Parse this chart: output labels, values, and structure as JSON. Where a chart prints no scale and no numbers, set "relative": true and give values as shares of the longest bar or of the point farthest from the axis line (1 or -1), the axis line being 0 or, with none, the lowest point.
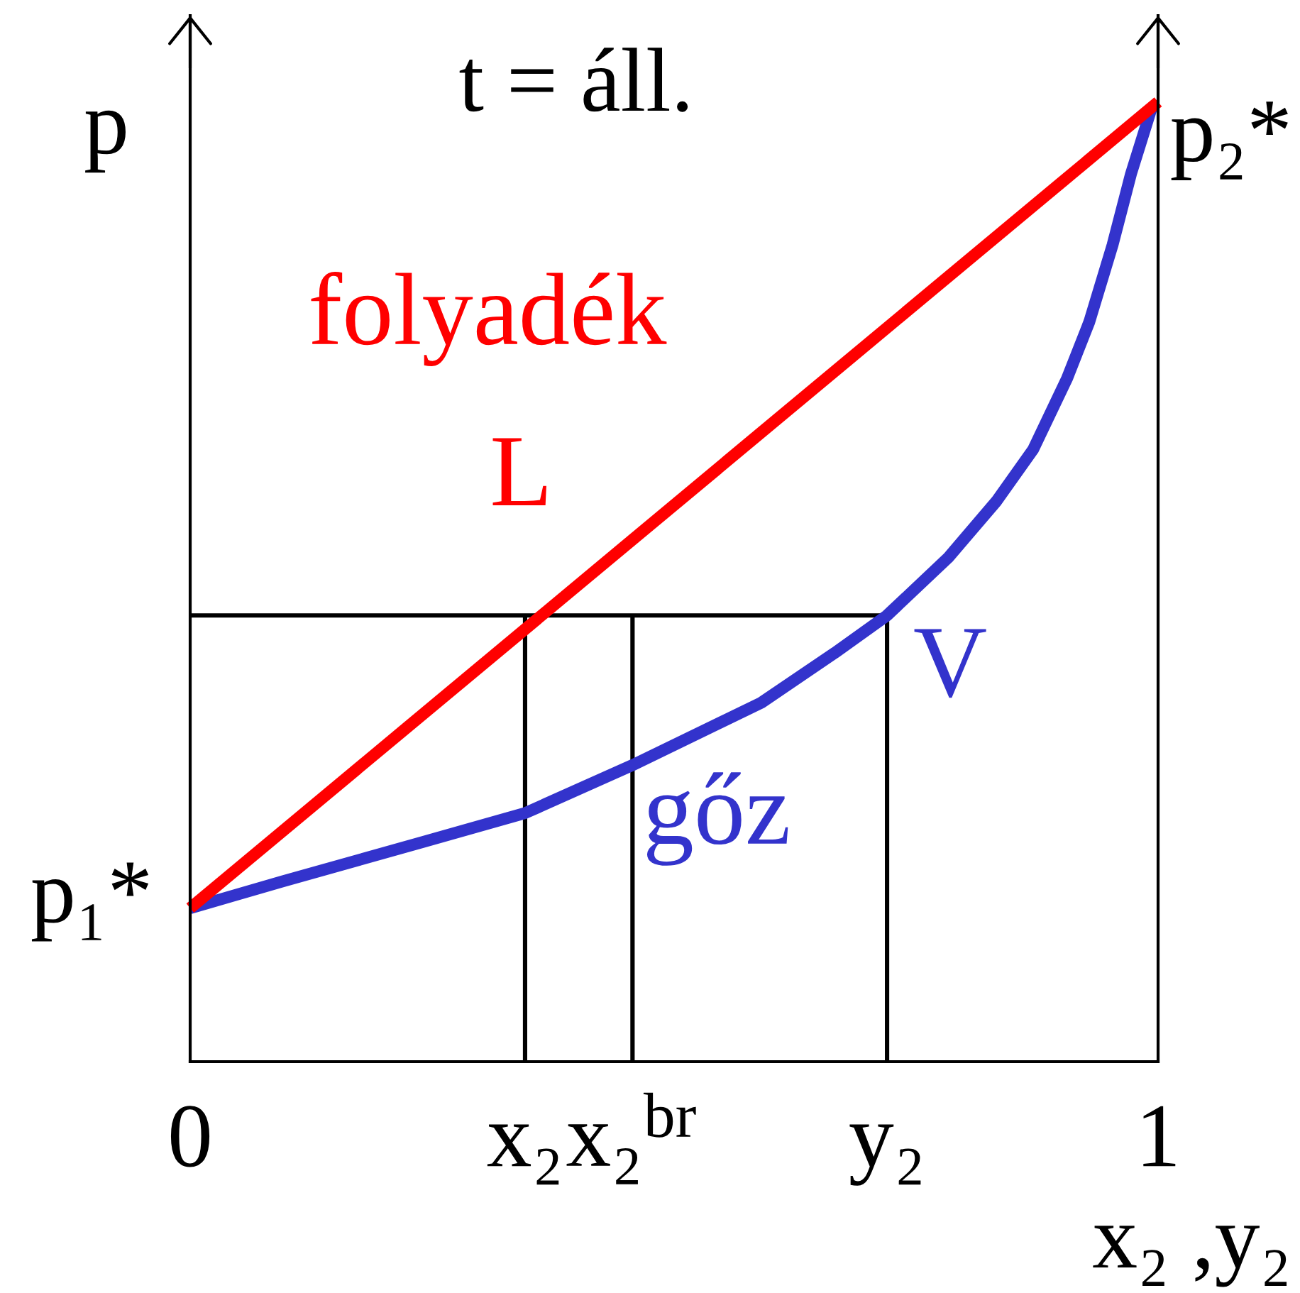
{
  "chart_data": {
    "type": "line",
    "title": "t = áll.",
    "xlabel": "x₂ ,y₂",
    "ylabel": "p",
    "relative": true,
    "xlim": [
      0,
      1
    ],
    "xticks": [
      0,
      {
        "value": 0.346,
        "label": "x₂"
      },
      {
        "value": 0.457,
        "label": "x₂$^{br}$"
      },
      {
        "value": 0.72,
        "label": "y₂"
      },
      1
    ],
    "series": [
      {
        "color": "#000000",
        "x": [
          0,
          0.72
        ],
        "values": [
          0.465,
          0.465
        ]
      },
      {
        "color": "#000000",
        "x": [
          0.346,
          0.346
        ],
        "values": [
          0,
          0.465
        ]
      },
      {
        "color": "#000000",
        "x": [
          0.457,
          0.457
        ],
        "values": [
          0,
          0.465
        ]
      },
      {
        "color": "#000000",
        "x": [
          0.72,
          0.72
        ],
        "values": [
          0,
          0.465
        ]
      },
      {
        "name": "V",
        "color": "#3333cc",
        "x": [
          0,
          0.096,
          0.241,
          0.346,
          0.457,
          0.59,
          0.666,
          0.72,
          0.783,
          0.833,
          0.871,
          0.906,
          0.929,
          0.953,
          0.972,
          0.994
        ],
        "values": [
          0.16,
          0.188,
          0.229,
          0.259,
          0.309,
          0.374,
          0.426,
          0.465,
          0.525,
          0.584,
          0.638,
          0.712,
          0.771,
          0.851,
          0.925,
          0.996
        ]
      },
      {
        "name": "L",
        "color": "#ff0000",
        "x": [
          0,
          1
        ],
        "values": [
          0.16,
          1
        ]
      }
    ],
    "annotations": [
      {
        "text": "p₁*",
        "x": 0,
        "y": 0.16
      },
      {
        "text": "p₂*",
        "x": 1,
        "y": 1
      },
      "folyadék",
      "gőz"
    ]
  }
}
